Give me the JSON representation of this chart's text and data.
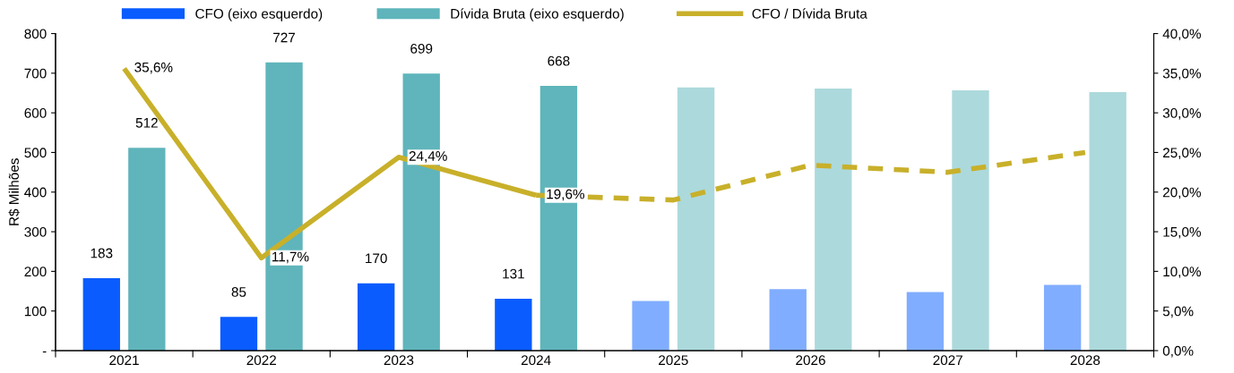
{
  "chart_data": {
    "type": "bar",
    "categories": [
      "2021",
      "2022",
      "2023",
      "2024",
      "2025",
      "2026",
      "2027",
      "2028"
    ],
    "ylabel": "R$ Milhões",
    "ylim": [
      0,
      800
    ],
    "yticks": [
      {
        "value": 0,
        "label": "-"
      },
      100,
      200,
      300,
      400,
      500,
      600,
      700,
      800
    ],
    "y2lim": [
      0,
      40
    ],
    "y2ticks": [
      {
        "value": 0,
        "label": "0,0%"
      },
      {
        "value": 5,
        "label": "5,0%"
      },
      {
        "value": 10,
        "label": "10,0%"
      },
      {
        "value": 15,
        "label": "15,0%"
      },
      {
        "value": 20,
        "label": "20,0%"
      },
      {
        "value": 25,
        "label": "25,0%"
      },
      {
        "value": 30,
        "label": "30,0%"
      },
      {
        "value": 35,
        "label": "35,0%"
      },
      {
        "value": 40,
        "label": "40,0%"
      }
    ],
    "grid": false,
    "legend": "top",
    "series": [
      {
        "name": "CFO (eixo esquerdo)",
        "color": "#0a5cff",
        "colors": [
          "#0a5cff",
          "#0a5cff",
          "#0a5cff",
          "#0a5cff",
          "#80adff",
          "#80adff",
          "#80adff",
          "#80adff"
        ],
        "values": [
          183,
          85,
          170,
          131,
          125,
          155,
          148,
          166
        ],
        "value_labels": [
          "183",
          "85",
          "170",
          "131",
          null,
          null,
          null,
          null
        ]
      },
      {
        "name": "Dívida Bruta (eixo esquerdo)",
        "color": "#5fb5bb",
        "colors": [
          "#5fb5bb",
          "#5fb5bb",
          "#5fb5bb",
          "#5fb5bb",
          "#acd9dc",
          "#acd9dc",
          "#acd9dc",
          "#acd9dc"
        ],
        "values": [
          512,
          727,
          699,
          668,
          664,
          661,
          657,
          652
        ],
        "value_labels": [
          "512",
          "727",
          "699",
          "668",
          null,
          null,
          null,
          null
        ]
      },
      {
        "name": "CFO / Dívida Bruta",
        "type": "line",
        "axis": "y2",
        "color": "#c8b02a",
        "line_style": "solid",
        "values": [
          35.6,
          11.7,
          24.4,
          19.6,
          null,
          null,
          null,
          null
        ],
        "value_labels": [
          "35,6%",
          "11,7%",
          "24,4%",
          "19,6%",
          null,
          null,
          null,
          null
        ]
      },
      {
        "type": "line",
        "axis": "y2",
        "color": "#c8b02a",
        "line_style": "dashed",
        "values": [
          null,
          null,
          null,
          19.6,
          19.0,
          23.4,
          22.5,
          25.0
        ]
      }
    ]
  }
}
